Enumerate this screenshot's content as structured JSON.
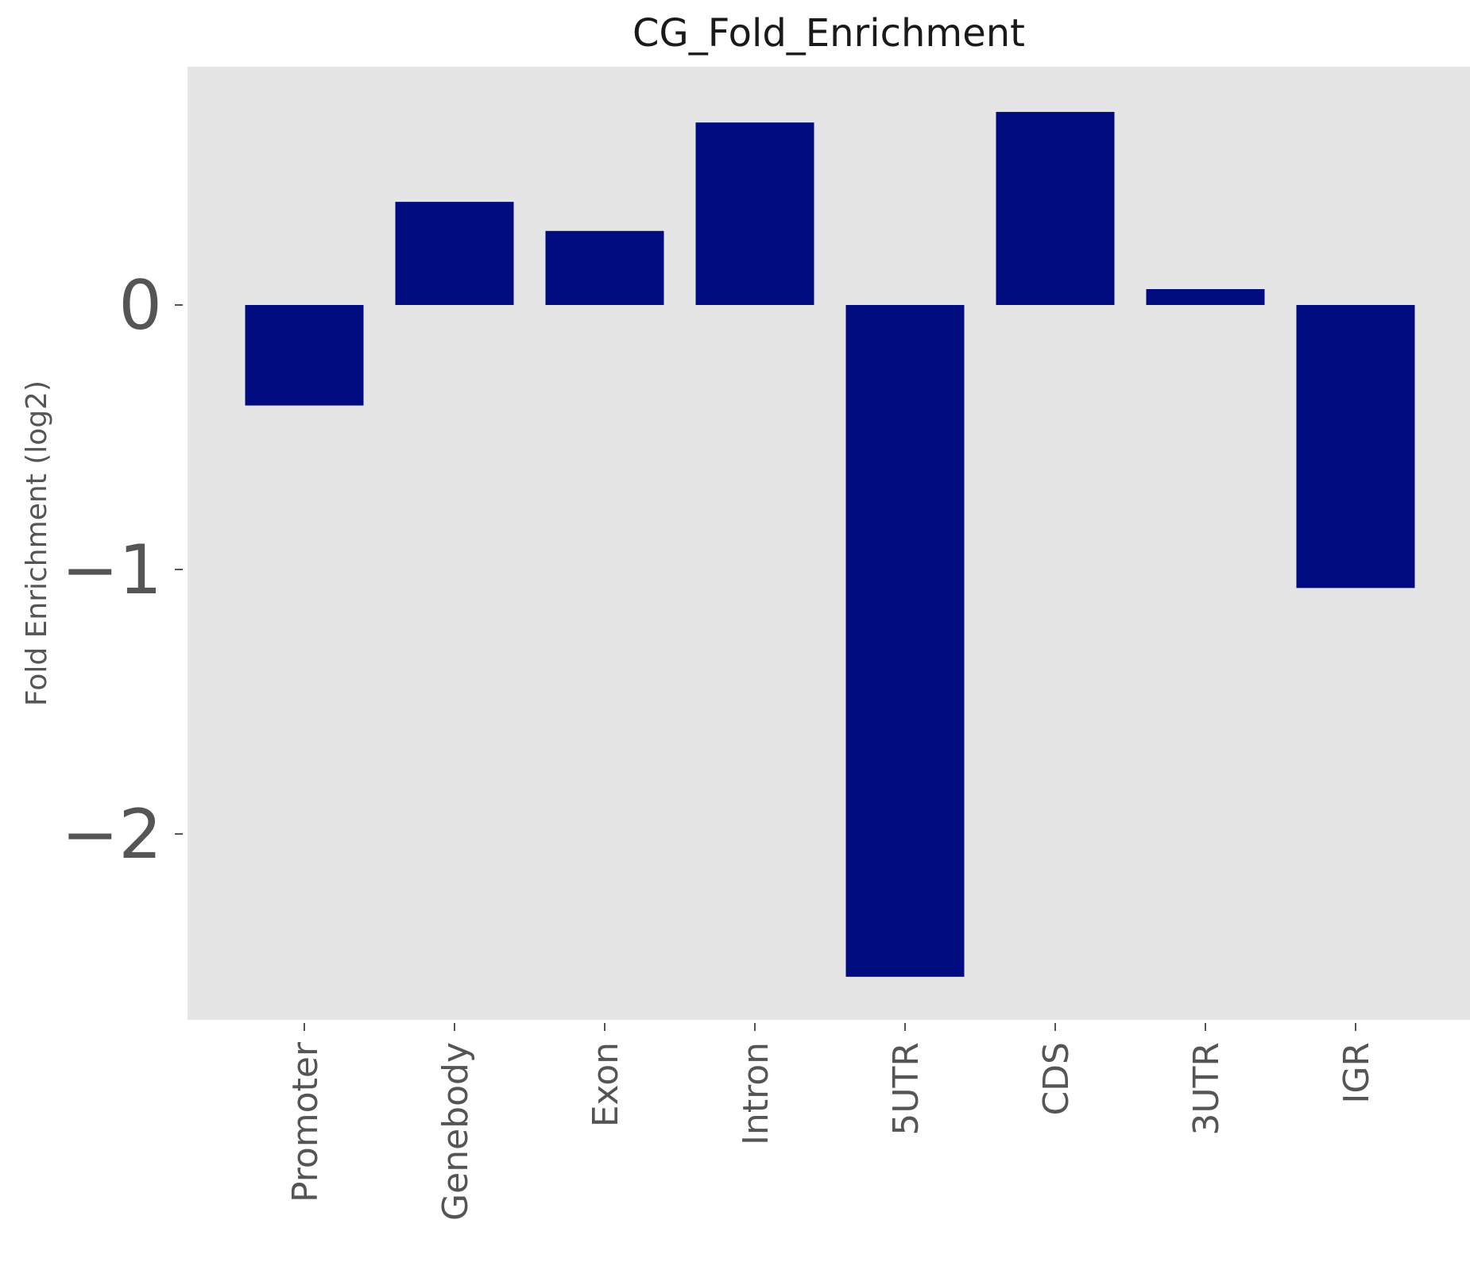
{
  "chart_data": {
    "type": "bar",
    "title": "CG_Fold_Enrichment",
    "xlabel": "",
    "ylabel": "Fold Enrichment (log2)",
    "categories": [
      "Promoter",
      "Genebody",
      "Exon",
      "Intron",
      "5UTR",
      "CDS",
      "3UTR",
      "IGR"
    ],
    "values": [
      -0.38,
      0.39,
      0.28,
      0.69,
      -2.54,
      0.73,
      0.06,
      -1.07
    ],
    "ylim": [
      -2.7,
      0.9
    ],
    "yticks": [
      0,
      -1,
      -2
    ],
    "ytick_labels": [
      "0",
      "−1",
      "−2"
    ],
    "grid": false,
    "bar_color": "#000c80",
    "plot_background": "#e5e5e5",
    "text_color": "#555555"
  }
}
